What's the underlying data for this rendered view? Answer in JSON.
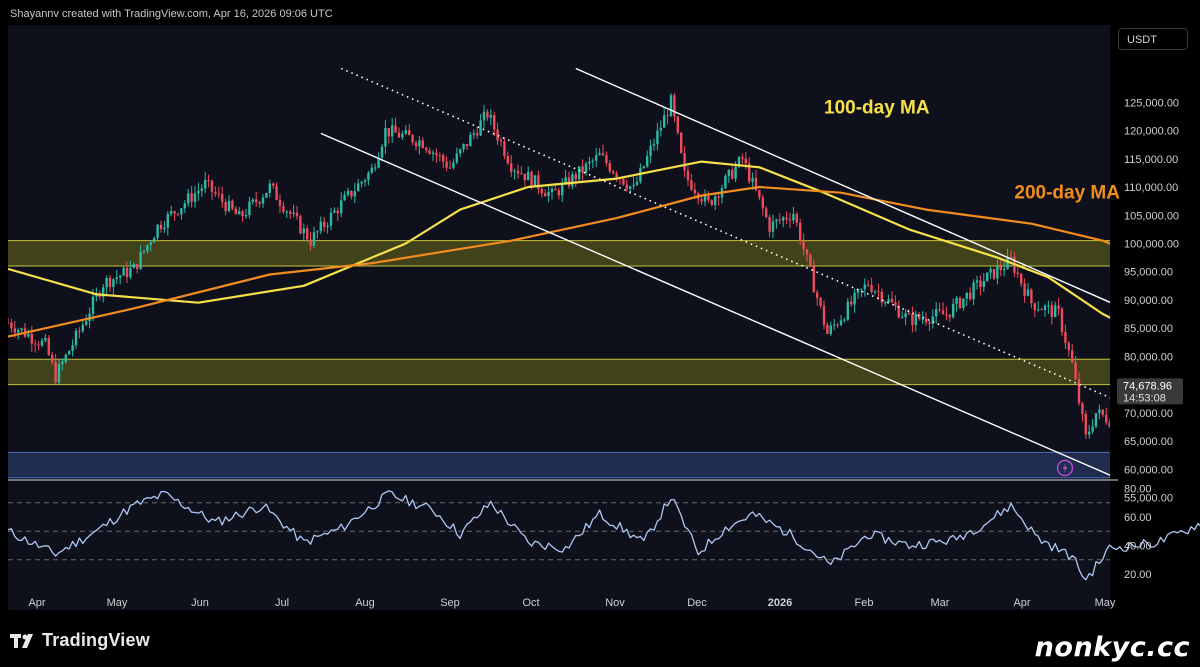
{
  "header": {
    "credit": "Shayannv created with TradingView.com, Apr 16, 2026 09:06 UTC"
  },
  "currency": "USDT",
  "brand": {
    "name": "TradingView",
    "logo_icon": "tradingview-logo-icon"
  },
  "watermark": "nonkyc.cc",
  "colors": {
    "up": "#2bb9a3",
    "down": "#ee4b5c",
    "ma100": "#f7e14a",
    "ma200": "#f28c1e",
    "zone_yellow": "#6b6a1a",
    "zone_blue": "#2d4478",
    "rsi": "#aec8f0",
    "panel": "#0e101c"
  },
  "chart_data": [
    {
      "type": "candlestick",
      "symbol_quote": "USDT",
      "x_axis": {
        "labels": [
          "Apr",
          "May",
          "Jun",
          "Jul",
          "Aug",
          "Sep",
          "Oct",
          "Nov",
          "Dec",
          "2026",
          "Feb",
          "Mar",
          "Apr",
          "May"
        ]
      },
      "y_axis": {
        "min": 53000,
        "max": 129000,
        "ticks": [
          "55,000.00",
          "60,000.00",
          "65,000.00",
          "70,000.00",
          "75,000.00",
          "80,000.00",
          "85,000.00",
          "90,000.00",
          "95,000.00",
          "100,000.00",
          "105,000.00",
          "110,000.00",
          "115,000.00",
          "120,000.00",
          "125,000.00"
        ]
      },
      "price_path": [
        [
          "2025-03-25",
          86000
        ],
        [
          "2025-04-05",
          82000
        ],
        [
          "2025-04-08",
          76500
        ],
        [
          "2025-04-15",
          84500
        ],
        [
          "2025-04-22",
          93000
        ],
        [
          "2025-05-01",
          95500
        ],
        [
          "2025-05-08",
          103000
        ],
        [
          "2025-05-22",
          110500
        ],
        [
          "2025-06-01",
          104500
        ],
        [
          "2025-06-10",
          110000
        ],
        [
          "2025-06-22",
          100500
        ],
        [
          "2025-07-01",
          107000
        ],
        [
          "2025-07-10",
          113000
        ],
        [
          "2025-07-14",
          120000
        ],
        [
          "2025-07-25",
          118000
        ],
        [
          "2025-08-02",
          113500
        ],
        [
          "2025-08-13",
          123000
        ],
        [
          "2025-08-20",
          114000
        ],
        [
          "2025-09-01",
          108500
        ],
        [
          "2025-09-15",
          115500
        ],
        [
          "2025-09-25",
          109500
        ],
        [
          "2025-10-06",
          125000
        ],
        [
          "2025-10-10",
          112000
        ],
        [
          "2025-10-17",
          107000
        ],
        [
          "2025-10-27",
          115000
        ],
        [
          "2025-11-04",
          103000
        ],
        [
          "2025-11-11",
          105500
        ],
        [
          "2025-11-21",
          84000
        ],
        [
          "2025-12-03",
          93000
        ],
        [
          "2025-12-15",
          86500
        ],
        [
          "2025-12-26",
          87500
        ],
        [
          "2026-01-06",
          93500
        ],
        [
          "2026-01-14",
          97000
        ],
        [
          "2026-01-20",
          89500
        ],
        [
          "2026-01-28",
          87500
        ],
        [
          "2026-02-01",
          78500
        ],
        [
          "2026-02-05",
          65500
        ],
        [
          "2026-02-08",
          70000
        ],
        [
          "2026-02-20",
          66500
        ],
        [
          "2026-02-26",
          67500
        ],
        [
          "2026-03-04",
          70500
        ],
        [
          "2026-03-15",
          74500
        ],
        [
          "2026-03-22",
          70000
        ],
        [
          "2026-03-30",
          66500
        ],
        [
          "2026-04-04",
          67500
        ],
        [
          "2026-04-10",
          71500
        ],
        [
          "2026-04-16",
          74679
        ]
      ],
      "moving_averages": [
        {
          "name": "100-day MA",
          "color": "#f7e14a",
          "points": [
            [
              "2025-03-25",
              95500
            ],
            [
              "2025-04-20",
              91000
            ],
            [
              "2025-05-20",
              89500
            ],
            [
              "2025-06-20",
              92500
            ],
            [
              "2025-07-20",
              100000
            ],
            [
              "2025-08-05",
              106000
            ],
            [
              "2025-08-25",
              110000
            ],
            [
              "2025-09-20",
              111500
            ],
            [
              "2025-10-15",
              114500
            ],
            [
              "2025-11-01",
              113500
            ],
            [
              "2025-11-20",
              109000
            ],
            [
              "2025-12-15",
              102500
            ],
            [
              "2026-01-10",
              97500
            ],
            [
              "2026-01-25",
              94000
            ],
            [
              "2026-02-10",
              87500
            ],
            [
              "2026-02-28",
              82000
            ],
            [
              "2026-03-20",
              78500
            ],
            [
              "2026-04-16",
              75000
            ]
          ]
        },
        {
          "name": "200-day MA",
          "color": "#f28c1e",
          "points": [
            [
              "2025-03-25",
              83500
            ],
            [
              "2025-05-01",
              88500
            ],
            [
              "2025-06-10",
              94500
            ],
            [
              "2025-07-10",
              96500
            ],
            [
              "2025-08-20",
              100500
            ],
            [
              "2025-09-20",
              104500
            ],
            [
              "2025-10-15",
              108500
            ],
            [
              "2025-11-01",
              110000
            ],
            [
              "2025-11-25",
              109000
            ],
            [
              "2025-12-20",
              106000
            ],
            [
              "2026-01-20",
              103500
            ],
            [
              "2026-02-10",
              100500
            ],
            [
              "2026-03-01",
              96000
            ],
            [
              "2026-03-20",
              91500
            ],
            [
              "2026-04-16",
              87000
            ]
          ]
        }
      ],
      "zones": [
        {
          "color": "#6b6a1a",
          "from": 96000,
          "to": 100500
        },
        {
          "color": "#6b6a1a",
          "from": 75000,
          "to": 79500
        },
        {
          "color": "#2d4478",
          "from": 58500,
          "to": 63000
        }
      ],
      "trendlines": [
        {
          "style": "solid",
          "from": [
            "2025-09-08",
            131000
          ],
          "to": [
            "2026-04-16",
            73000
          ]
        },
        {
          "style": "solid",
          "from": [
            "2025-06-25",
            119500
          ],
          "to": [
            "2026-03-07",
            53000
          ]
        },
        {
          "style": "dotted",
          "from": [
            "2025-07-01",
            131000
          ],
          "to": [
            "2026-04-14",
            57000
          ]
        }
      ],
      "last_price": {
        "label": "74,678.96",
        "countdown": "14:53:08",
        "value": 74678.96
      },
      "annotations": [
        {
          "text": "100-day MA",
          "color": "#f7e14a",
          "at": [
            "2025-11-20",
            123000
          ]
        },
        {
          "text": "200-day MA",
          "color": "#f28c1e",
          "at": [
            "2026-01-15",
            108000
          ]
        }
      ]
    },
    {
      "type": "line",
      "name": "RSI",
      "y_axis": {
        "min": 10,
        "max": 82,
        "ticks": [
          "20.00",
          "40.00",
          "60.00",
          "80.00"
        ],
        "reference_lines": [
          30,
          50,
          70
        ]
      },
      "x_start": "2025-03-25",
      "points": [
        [
          "2025-03-25",
          50
        ],
        [
          "2025-04-08",
          34
        ],
        [
          "2025-04-20",
          50
        ],
        [
          "2025-05-01",
          68
        ],
        [
          "2025-05-10",
          76
        ],
        [
          "2025-05-25",
          56
        ],
        [
          "2025-06-08",
          68
        ],
        [
          "2025-06-20",
          42
        ],
        [
          "2025-07-01",
          52
        ],
        [
          "2025-07-15",
          76
        ],
        [
          "2025-07-28",
          65
        ],
        [
          "2025-08-05",
          48
        ],
        [
          "2025-08-14",
          70
        ],
        [
          "2025-08-25",
          42
        ],
        [
          "2025-09-05",
          38
        ],
        [
          "2025-09-15",
          62
        ],
        [
          "2025-09-28",
          42
        ],
        [
          "2025-10-06",
          74
        ],
        [
          "2025-10-14",
          35
        ],
        [
          "2025-10-22",
          52
        ],
        [
          "2025-10-30",
          62
        ],
        [
          "2025-11-10",
          48
        ],
        [
          "2025-11-22",
          26
        ],
        [
          "2025-12-03",
          48
        ],
        [
          "2025-12-15",
          40
        ],
        [
          "2025-12-28",
          44
        ],
        [
          "2026-01-06",
          55
        ],
        [
          "2026-01-14",
          68
        ],
        [
          "2026-01-22",
          45
        ],
        [
          "2026-02-01",
          32
        ],
        [
          "2026-02-05",
          16
        ],
        [
          "2026-02-12",
          38
        ],
        [
          "2026-02-26",
          42
        ],
        [
          "2026-03-06",
          50
        ],
        [
          "2026-03-16",
          62
        ],
        [
          "2026-03-24",
          46
        ],
        [
          "2026-03-31",
          40
        ],
        [
          "2026-04-08",
          54
        ],
        [
          "2026-04-16",
          62
        ]
      ]
    }
  ]
}
